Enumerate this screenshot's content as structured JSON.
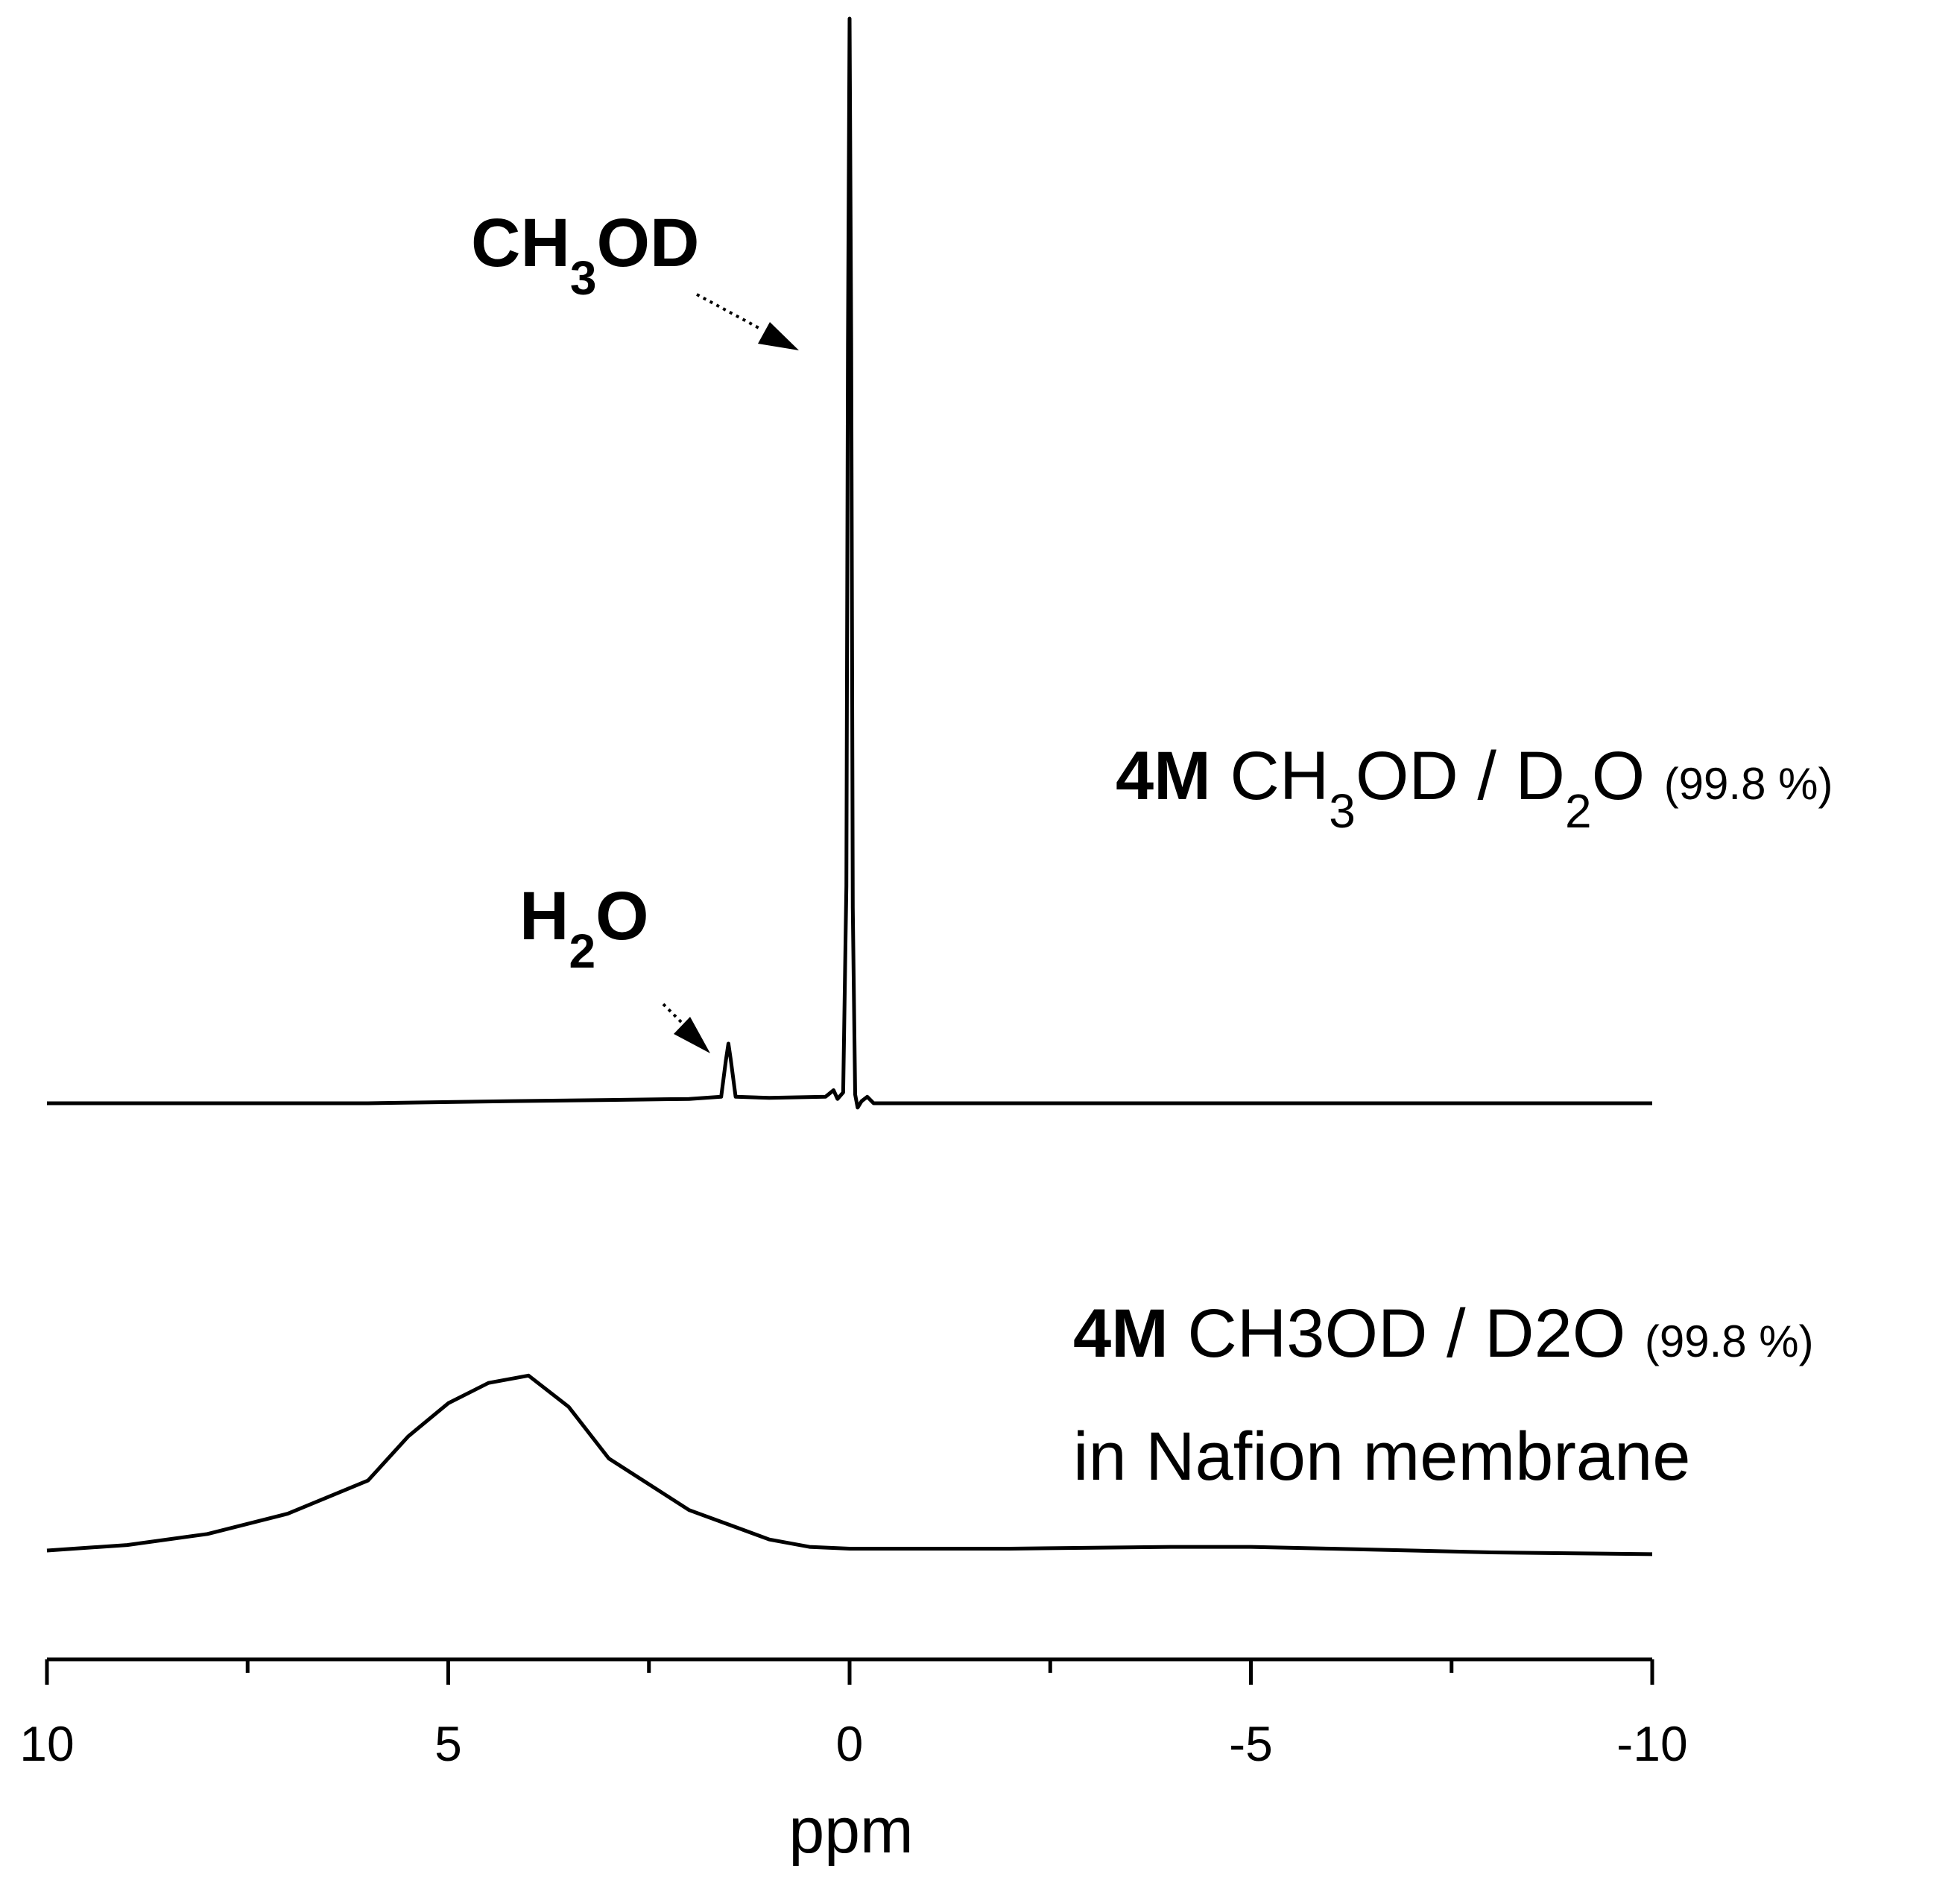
{
  "chart_data": {
    "type": "line",
    "title": "",
    "xlabel": "ppm",
    "ylabel": "",
    "xlim": [
      10,
      -10
    ],
    "x_reversed": true,
    "grid": false,
    "x_ticks": [
      "10",
      "5",
      "0",
      "-5",
      "-10"
    ],
    "x_tick_values": [
      10,
      5,
      0,
      -5,
      -10
    ],
    "series": [
      {
        "label_parts": {
          "bold": "4M",
          "formula_a": "CH",
          "sub_a": "3",
          "formula_b": "OD / D",
          "sub_b": "2",
          "formula_c": "O",
          "purity": "(99.8 %)"
        },
        "points": [
          [
            10,
            0
          ],
          [
            8,
            0
          ],
          [
            6,
            0
          ],
          [
            4.2,
            0.002
          ],
          [
            3,
            0.003
          ],
          [
            2,
            0.004
          ],
          [
            1.6,
            0.006
          ],
          [
            1.54,
            0.04
          ],
          [
            1.51,
            0.055
          ],
          [
            1.48,
            0.04
          ],
          [
            1.42,
            0.006
          ],
          [
            1.0,
            0.005
          ],
          [
            0.3,
            0.006
          ],
          [
            0.2,
            0.012
          ],
          [
            0.15,
            0.004
          ],
          [
            0.08,
            0.01
          ],
          [
            0.04,
            0.2
          ],
          [
            0.02,
            0.7
          ],
          [
            0.0,
            1.0
          ],
          [
            -0.02,
            0.7
          ],
          [
            -0.04,
            0.18
          ],
          [
            -0.07,
            0.008
          ],
          [
            -0.1,
            -0.004
          ],
          [
            -0.15,
            0.002
          ],
          [
            -0.22,
            0.006
          ],
          [
            -0.3,
            0.0
          ],
          [
            -1,
            0
          ],
          [
            -3,
            0
          ],
          [
            -6,
            0
          ],
          [
            -10,
            0
          ]
        ]
      },
      {
        "label_parts": {
          "bold": "4M",
          "formula_a": "CH",
          "sub_a": "3",
          "formula_b": "OD / D",
          "sub_b": "2",
          "formula_c": "O",
          "purity": "(99.8 %)",
          "line2": "in Nafion membrane"
        },
        "points": [
          [
            10,
            0.0
          ],
          [
            9,
            0.03
          ],
          [
            8,
            0.09
          ],
          [
            7,
            0.2
          ],
          [
            6,
            0.38
          ],
          [
            5.5,
            0.62
          ],
          [
            5,
            0.8
          ],
          [
            4.5,
            0.91
          ],
          [
            4.0,
            0.95
          ],
          [
            3.5,
            0.78
          ],
          [
            3,
            0.5
          ],
          [
            2.5,
            0.36
          ],
          [
            2,
            0.22
          ],
          [
            1.5,
            0.14
          ],
          [
            1,
            0.06
          ],
          [
            0.5,
            0.02
          ],
          [
            0,
            0.01
          ],
          [
            -2,
            0.01
          ],
          [
            -4,
            0.02
          ],
          [
            -5,
            0.02
          ],
          [
            -6,
            0.01
          ],
          [
            -8,
            -0.01
          ],
          [
            -10,
            -0.02
          ]
        ]
      }
    ],
    "annotations": [
      {
        "main": "CH",
        "sub": "3",
        "tail": "OD"
      },
      {
        "main": "H",
        "sub": "2",
        "tail": "O"
      }
    ]
  }
}
